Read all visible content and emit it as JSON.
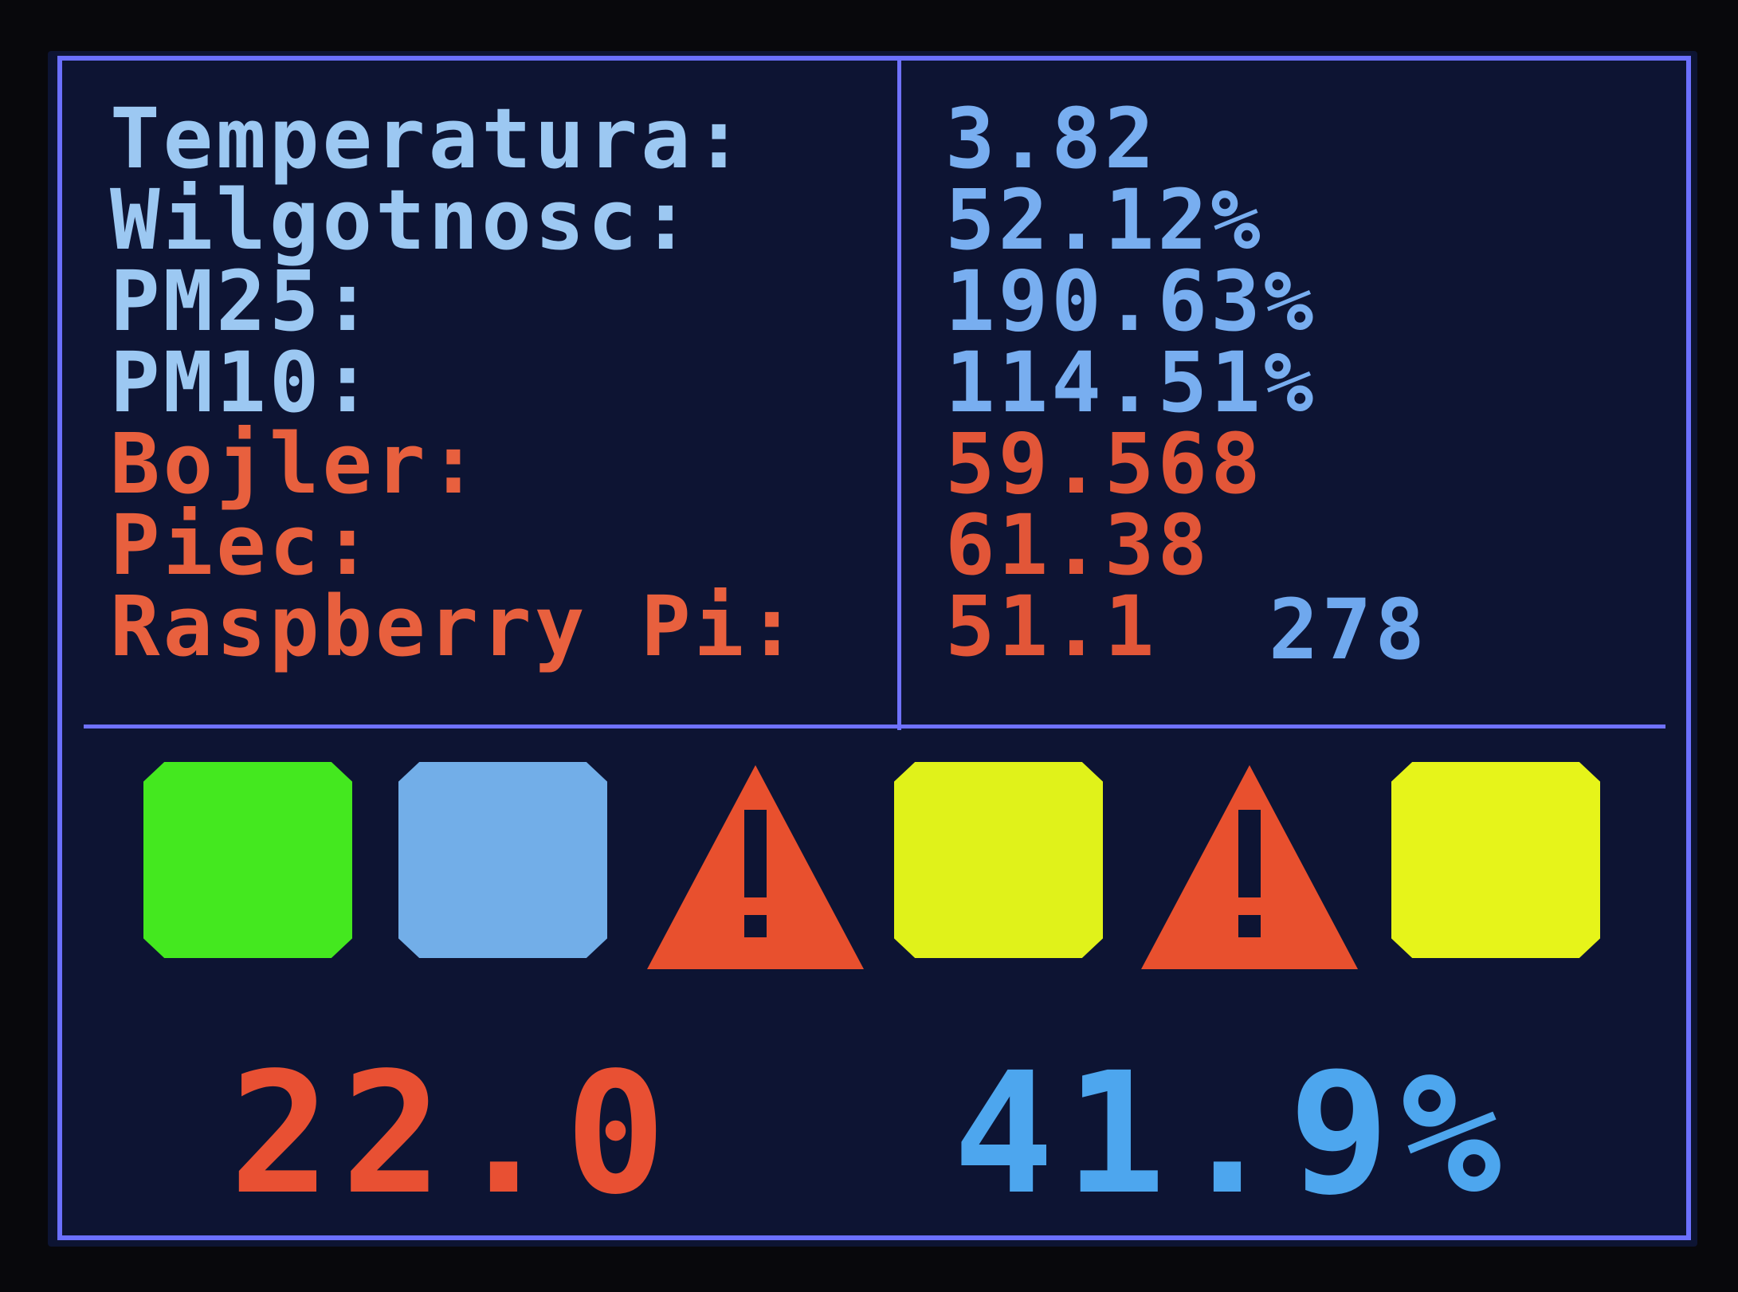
{
  "sensors": [
    {
      "label": "Temperatura:",
      "value": "3.82"
    },
    {
      "label": "Wilgotnosc:",
      "value": "52.12%"
    },
    {
      "label": "PM25:",
      "value": "190.63%"
    },
    {
      "label": "PM10:",
      "value": "114.51%"
    },
    {
      "label": "Bojler:",
      "value": "59.568"
    },
    {
      "label": "Piec:",
      "value": "61.38"
    },
    {
      "label": "Raspberry Pi:",
      "value": "51.1",
      "extra": "278"
    }
  ],
  "indicators": [
    {
      "kind": "square",
      "color": "#44e81f"
    },
    {
      "kind": "square",
      "color": "#72aee8"
    },
    {
      "kind": "warning",
      "color": "#e8502e",
      "icon": "warning-icon"
    },
    {
      "kind": "square",
      "color": "#e0f21a"
    },
    {
      "kind": "warning",
      "color": "#e8502e",
      "icon": "warning-icon"
    },
    {
      "kind": "square",
      "color": "#e6f41a"
    }
  ],
  "bottom": {
    "temperature": "22.0",
    "humidity": "41.9%"
  },
  "colors": {
    "background": "#0d1433",
    "border": "#6f72ff",
    "label_blue": "#9cc8f2",
    "label_red": "#e8603e"
  }
}
